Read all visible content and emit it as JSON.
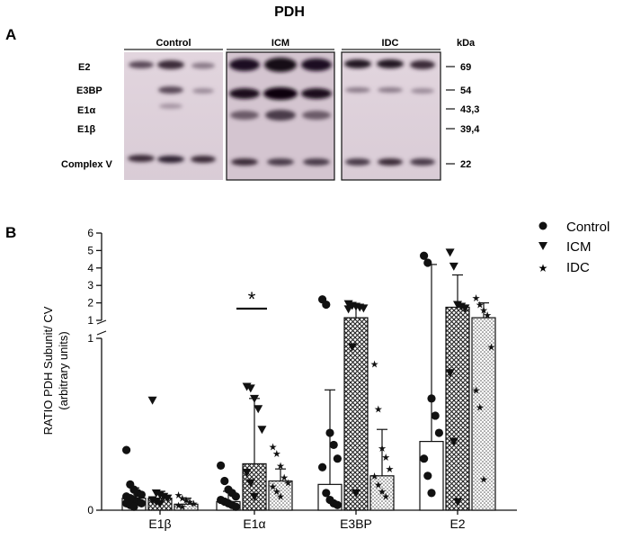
{
  "figure": {
    "title": "PDH",
    "panel_a": {
      "label": "A",
      "groups": [
        "Control",
        "ICM",
        "IDC"
      ],
      "unit_label": "kDa",
      "bands": [
        {
          "name": "E2",
          "kda": "69"
        },
        {
          "name": "E3BP",
          "kda": "54"
        },
        {
          "name": "E1α",
          "kda": "43,3"
        },
        {
          "name": "E1β",
          "kda": "39,4"
        },
        {
          "name": "Complex V",
          "kda": "22"
        }
      ]
    },
    "panel_b": {
      "label": "B",
      "star_label": "*"
    }
  },
  "chart_data": {
    "type": "bar",
    "ylabel": "RATIO  PDH Subunit/ CV",
    "ylabel_sub": "(arbitrary units)",
    "categories": [
      "E1β",
      "E1α",
      "E3BP",
      "E2"
    ],
    "y_axis_broken": true,
    "y_lower_range": [
      0,
      1
    ],
    "y_upper_range": [
      1,
      6
    ],
    "y_ticks_lower": [
      "0",
      "1"
    ],
    "y_ticks_upper": [
      "1",
      "2",
      "3",
      "4",
      "5",
      "6"
    ],
    "legend": {
      "position": "top-right",
      "entries": [
        "Control",
        "ICM",
        "IDC"
      ]
    },
    "series": [
      {
        "name": "Control",
        "marker": "circle",
        "fill": "white",
        "values": [
          0.07,
          0.05,
          0.15,
          0.4
        ],
        "error_up": [
          0.13,
          0.11,
          0.7,
          4.2
        ],
        "points": [
          [
            0.35,
            0.15,
            0.12,
            0.1,
            0.09,
            0.08,
            0.07,
            0.06,
            0.05,
            0.04,
            0.04,
            0.03,
            0.02
          ],
          [
            0.26,
            0.17,
            0.12,
            0.1,
            0.08,
            0.06,
            0.05,
            0.04,
            0.03,
            0.02
          ],
          [
            2.2,
            1.9,
            0.45,
            0.38,
            0.3,
            0.25,
            0.1,
            0.06,
            0.04,
            0.03
          ],
          [
            4.7,
            4.3,
            0.65,
            0.55,
            0.45,
            0.3,
            0.2,
            0.1
          ]
        ]
      },
      {
        "name": "ICM",
        "marker": "triangle-down",
        "fill": "crosshatch",
        "values": [
          0.07,
          0.27,
          1.15,
          1.75
        ],
        "error_up": [
          0.11,
          0.65,
          1.8,
          3.6
        ],
        "points": [
          [
            0.64,
            0.1,
            0.09,
            0.08,
            0.07,
            0.06,
            0.05,
            0.04
          ],
          [
            0.72,
            0.71,
            0.65,
            0.59,
            0.47,
            0.22,
            0.16,
            0.08
          ],
          [
            1.95,
            1.85,
            1.8,
            1.75,
            1.7,
            1.65,
            0.95,
            0.1
          ],
          [
            4.9,
            4.1,
            1.9,
            1.8,
            1.7,
            0.8,
            0.4,
            0.05
          ]
        ]
      },
      {
        "name": "IDC",
        "marker": "star",
        "fill": "dots",
        "values": [
          0.035,
          0.17,
          0.2,
          1.15
        ],
        "error_up": [
          0.07,
          0.24,
          0.47,
          2.0
        ],
        "points": [
          [
            0.09,
            0.07,
            0.06,
            0.05,
            0.04,
            0.03,
            0.02
          ],
          [
            0.37,
            0.33,
            0.26,
            0.19,
            0.16,
            0.14,
            0.11,
            0.08
          ],
          [
            0.85,
            0.59,
            0.36,
            0.31,
            0.24,
            0.2,
            0.15,
            0.11,
            0.08
          ],
          [
            2.3,
            1.9,
            1.6,
            1.3,
            0.95,
            0.7,
            0.6,
            0.18
          ]
        ]
      }
    ],
    "significance": [
      {
        "category": "E1α",
        "label": "*"
      }
    ]
  }
}
